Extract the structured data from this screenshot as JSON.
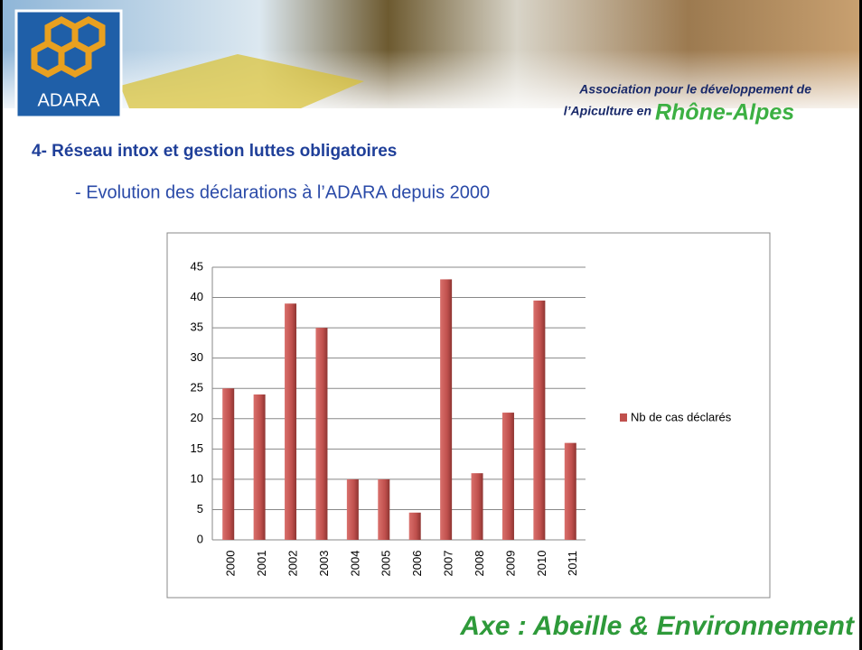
{
  "header": {
    "logo": "ADARA",
    "tagline_1": "Association pour le développement de",
    "tagline_2": "l’Apiculture en",
    "region": "Rhône-Alpes"
  },
  "section_title": "4- Réseau intox et gestion luttes obligatoires",
  "subtitle": "- Evolution des déclarations à l’ADARA depuis 2000",
  "chart_data": {
    "type": "bar",
    "categories": [
      "2000",
      "2001",
      "2002",
      "2003",
      "2004",
      "2005",
      "2006",
      "2007",
      "2008",
      "2009",
      "2010",
      "2011"
    ],
    "series": [
      {
        "name": "Nb de cas déclarés",
        "color": "#c0504d",
        "values": [
          25,
          24,
          39,
          35,
          10,
          10,
          4.5,
          43,
          11,
          21,
          39.5,
          16
        ]
      }
    ],
    "ylim": [
      0,
      45
    ],
    "yticks": [
      0,
      5,
      10,
      15,
      20,
      25,
      30,
      35,
      40,
      45
    ],
    "grid": true,
    "legend": "right"
  },
  "footer": "Axe : Abeille & Environnement"
}
